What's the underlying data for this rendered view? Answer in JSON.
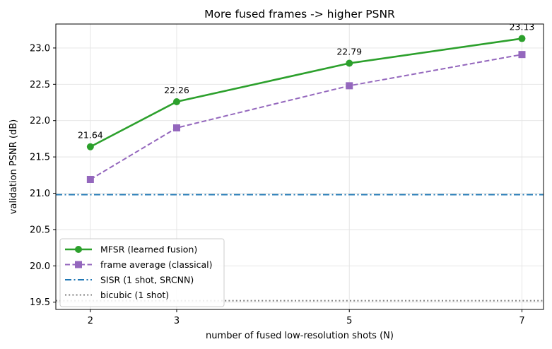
{
  "chart_data": {
    "type": "line",
    "title": "More fused frames -> higher PSNR",
    "xlabel": "number of fused low-resolution shots (N)",
    "ylabel": "validation PSNR (dB)",
    "xlim": [
      1.6,
      7.25
    ],
    "ylim": [
      19.4,
      23.33
    ],
    "xticks": [
      2,
      3,
      5,
      7
    ],
    "yticks": [
      19.5,
      20.0,
      20.5,
      21.0,
      21.5,
      22.0,
      22.5,
      23.0
    ],
    "ytick_labels": [
      "19.5",
      "20.0",
      "20.5",
      "21.0",
      "21.5",
      "22.0",
      "22.5",
      "23.0"
    ],
    "grid": true,
    "legend_position": "lower-left",
    "series": [
      {
        "name": "MFSR (learned fusion)",
        "x": [
          2,
          3,
          5,
          7
        ],
        "y": [
          21.64,
          22.26,
          22.79,
          23.13
        ],
        "color": "#2ca02c",
        "linestyle": "solid",
        "marker": "circle",
        "data_labels": [
          "21.64",
          "22.26",
          "22.79",
          "23.13"
        ]
      },
      {
        "name": "frame average (classical)",
        "x": [
          2,
          3,
          5,
          7
        ],
        "y": [
          21.19,
          21.9,
          22.48,
          22.91
        ],
        "color": "#9467bd",
        "linestyle": "dashed",
        "marker": "square"
      }
    ],
    "hlines": [
      {
        "name": "SISR (1 shot, SRCNN)",
        "y": 20.98,
        "color": "#1f77b4",
        "linestyle": "dashdot"
      },
      {
        "name": "bicubic (1 shot)",
        "y": 19.52,
        "color": "#7f7f7f",
        "linestyle": "dotted"
      }
    ]
  }
}
